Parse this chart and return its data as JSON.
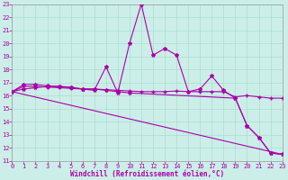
{
  "bg_color": "#cceee8",
  "grid_color": "#aaddcc",
  "line_color": "#aa00aa",
  "x_label": "Windchill (Refroidissement éolien,°C)",
  "ylim": [
    11,
    23
  ],
  "xlim": [
    0,
    23
  ],
  "yticks": [
    11,
    12,
    13,
    14,
    15,
    16,
    17,
    18,
    19,
    20,
    21,
    22,
    23
  ],
  "xticks": [
    0,
    1,
    2,
    3,
    4,
    5,
    6,
    7,
    8,
    9,
    10,
    11,
    12,
    13,
    14,
    15,
    16,
    17,
    18,
    19,
    20,
    21,
    22,
    23
  ],
  "line1_x": [
    0,
    1,
    2,
    3,
    4,
    5,
    6,
    7,
    8,
    9,
    10,
    11,
    12,
    13,
    14,
    15,
    16,
    17,
    18,
    19,
    20,
    21,
    22,
    23
  ],
  "line1_y": [
    16.3,
    16.85,
    16.85,
    16.75,
    16.7,
    16.6,
    16.5,
    16.4,
    18.2,
    16.2,
    20.0,
    23.0,
    19.1,
    19.6,
    19.1,
    16.3,
    16.5,
    17.5,
    16.4,
    15.8,
    13.7,
    12.8,
    11.6,
    11.5
  ],
  "line2_x": [
    0,
    1,
    2,
    3,
    4,
    5,
    6,
    7,
    8,
    9,
    10,
    11,
    12,
    13,
    14,
    15,
    16,
    17,
    18,
    19,
    20,
    21,
    22,
    23
  ],
  "line2_y": [
    16.3,
    16.7,
    16.7,
    16.65,
    16.6,
    16.55,
    16.5,
    16.5,
    16.45,
    16.4,
    16.35,
    16.3,
    16.3,
    16.3,
    16.35,
    16.3,
    16.3,
    16.3,
    16.3,
    15.9,
    16.0,
    15.9,
    15.8,
    15.8
  ],
  "line3_x": [
    0,
    1,
    2,
    3,
    4,
    5,
    6,
    7,
    8,
    9,
    10,
    19,
    20,
    21,
    22,
    23
  ],
  "line3_y": [
    16.3,
    16.5,
    16.6,
    16.7,
    16.7,
    16.65,
    16.5,
    16.5,
    16.4,
    16.3,
    16.2,
    15.8,
    13.7,
    12.8,
    11.6,
    11.5
  ],
  "line4_x": [
    0,
    23
  ],
  "line4_y": [
    16.3,
    11.5
  ]
}
